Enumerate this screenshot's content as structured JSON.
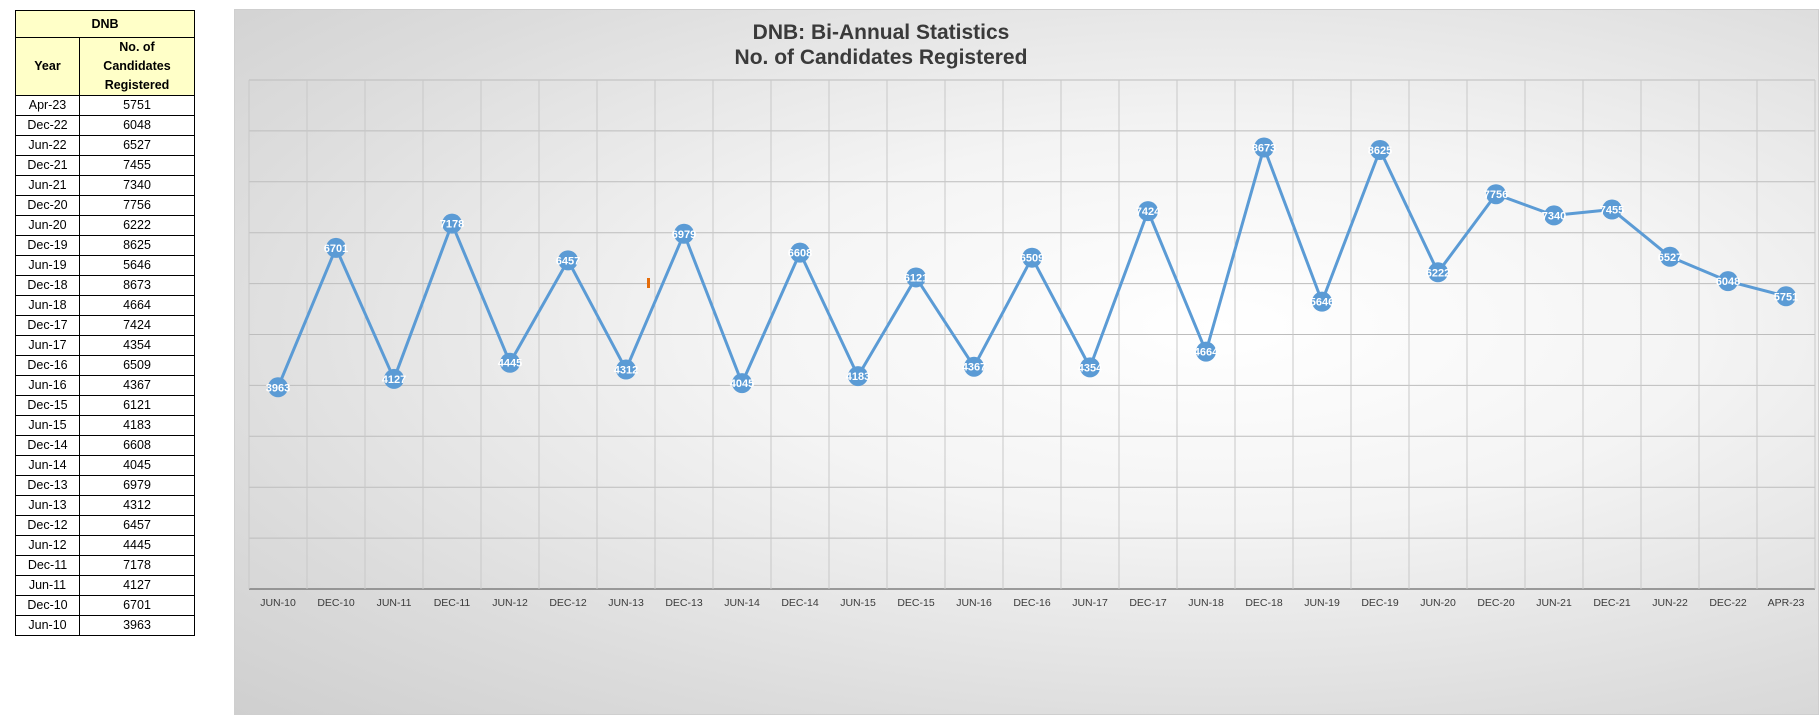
{
  "table": {
    "title": "DNB",
    "col_year": "Year",
    "col_count_lines": [
      "No. of",
      "Candidates",
      "Registered"
    ],
    "rows": [
      {
        "year": "Apr-23",
        "value": "5751"
      },
      {
        "year": "Dec-22",
        "value": "6048"
      },
      {
        "year": "Jun-22",
        "value": "6527"
      },
      {
        "year": "Dec-21",
        "value": "7455"
      },
      {
        "year": "Jun-21",
        "value": "7340"
      },
      {
        "year": "Dec-20",
        "value": "7756"
      },
      {
        "year": "Jun-20",
        "value": "6222"
      },
      {
        "year": "Dec-19",
        "value": "8625"
      },
      {
        "year": "Jun-19",
        "value": "5646"
      },
      {
        "year": "Dec-18",
        "value": "8673"
      },
      {
        "year": "Jun-18",
        "value": "4664"
      },
      {
        "year": "Dec-17",
        "value": "7424"
      },
      {
        "year": "Jun-17",
        "value": "4354"
      },
      {
        "year": "Dec-16",
        "value": "6509"
      },
      {
        "year": "Jun-16",
        "value": "4367"
      },
      {
        "year": "Dec-15",
        "value": "6121"
      },
      {
        "year": "Jun-15",
        "value": "4183"
      },
      {
        "year": "Dec-14",
        "value": "6608"
      },
      {
        "year": "Jun-14",
        "value": "4045"
      },
      {
        "year": "Dec-13",
        "value": "6979"
      },
      {
        "year": "Jun-13",
        "value": "4312"
      },
      {
        "year": "Dec-12",
        "value": "6457"
      },
      {
        "year": "Jun-12",
        "value": "4445"
      },
      {
        "year": "Dec-11",
        "value": "7178"
      },
      {
        "year": "Jun-11",
        "value": "4127"
      },
      {
        "year": "Dec-10",
        "value": "6701"
      },
      {
        "year": "Jun-10",
        "value": "3963"
      }
    ]
  },
  "chart_data": {
    "type": "line",
    "title_lines": [
      "DNB: Bi-Annual Statistics",
      "No. of Candidates Registered"
    ],
    "x": [
      "JUN-10",
      "DEC-10",
      "JUN-11",
      "DEC-11",
      "JUN-12",
      "DEC-12",
      "JUN-13",
      "DEC-13",
      "JUN-14",
      "DEC-14",
      "JUN-15",
      "DEC-15",
      "JUN-16",
      "DEC-16",
      "JUN-17",
      "DEC-17",
      "JUN-18",
      "DEC-18",
      "JUN-19",
      "DEC-19",
      "JUN-20",
      "DEC-20",
      "JUN-21",
      "DEC-21",
      "JUN-22",
      "DEC-22",
      "APR-23"
    ],
    "series": [
      {
        "values": [
          3963,
          6701,
          4127,
          7178,
          4445,
          6457,
          4312,
          6979,
          4045,
          6608,
          4183,
          6121,
          4367,
          6509,
          4354,
          7424,
          4664,
          8673,
          5646,
          8625,
          6222,
          7756,
          7340,
          7455,
          6527,
          6048,
          5751
        ]
      }
    ],
    "ylim": [
      0,
      10000
    ],
    "y_gridlines": [
      0,
      1000,
      2000,
      3000,
      4000,
      5000,
      6000,
      7000,
      8000,
      9000,
      10000
    ],
    "x_gridlines": true,
    "show_data_labels": true,
    "legend": "none",
    "colors": {
      "line": "#5b9bd5",
      "marker": "#5b9bd5",
      "label_text": "#ffffff",
      "stray_mark": "#e46c0a"
    }
  }
}
